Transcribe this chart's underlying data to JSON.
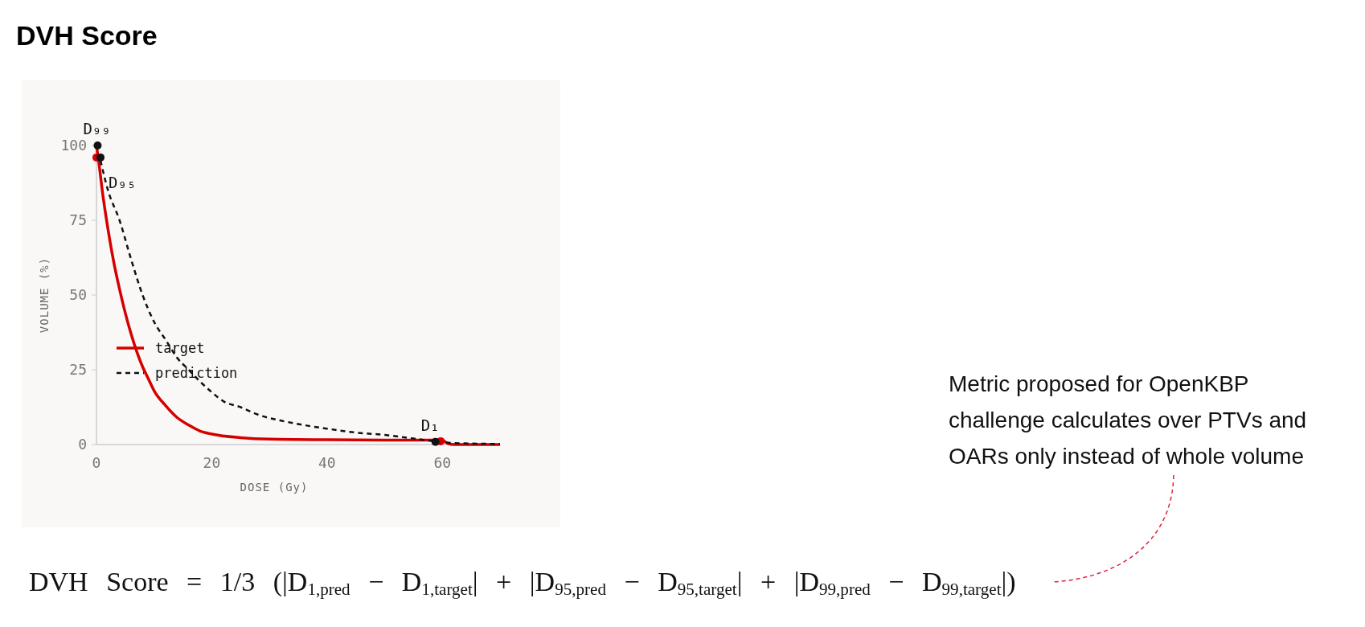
{
  "chart_data": {
    "type": "line",
    "title": "DVH Score",
    "xlabel": "DOSE (Gy)",
    "ylabel": "VOLUME (%)",
    "xlim": [
      0,
      70
    ],
    "ylim": [
      0,
      100
    ],
    "xticks": [
      0,
      20,
      40,
      60
    ],
    "yticks": [
      0,
      25,
      50,
      75,
      100
    ],
    "grid": false,
    "legend": "bottom left",
    "series": [
      {
        "name": "target",
        "color": "#d40000",
        "line_style": "solid",
        "x": [
          0,
          0.5,
          1,
          2,
          3,
          4,
          5,
          6,
          7,
          8,
          9,
          10,
          12,
          14,
          16,
          18,
          20,
          25,
          30,
          40,
          50,
          59,
          60,
          61,
          62,
          70
        ],
        "values": [
          100,
          93,
          85,
          72,
          61,
          52,
          44,
          37,
          31,
          26,
          22,
          18,
          13,
          9,
          6.5,
          4.5,
          3.5,
          2.3,
          1.8,
          1.6,
          1.5,
          1.5,
          1.4,
          0.3,
          0,
          0
        ]
      },
      {
        "name": "prediction",
        "color": "#111111",
        "line_style": "dashed",
        "x": [
          0.7,
          2,
          4,
          6,
          8,
          10,
          12,
          14,
          16,
          18,
          20,
          22,
          25,
          28,
          32,
          36,
          40,
          45,
          50,
          55,
          59,
          62,
          66,
          70
        ],
        "values": [
          95,
          85,
          75,
          62,
          50,
          41,
          35,
          29,
          25,
          21,
          17.5,
          14.5,
          12.5,
          10,
          8,
          6.5,
          5.3,
          4,
          3.2,
          2,
          1,
          0.5,
          0.3,
          0.2
        ]
      },
      {
        "type": "scatter",
        "marker": "circle",
        "color": "#d40000",
        "x": [
          0,
          59.7
        ],
        "values": [
          96,
          1.1
        ]
      },
      {
        "type": "scatter",
        "marker": "circle",
        "color": "#111111",
        "x": [
          0.2,
          0.7,
          58.8
        ],
        "values": [
          100,
          96,
          0.9
        ]
      }
    ],
    "annotations": [
      {
        "text": "D₉₉",
        "x": 0.2,
        "y": 100
      },
      {
        "text": "D₉₅",
        "x": 0.7,
        "y": 96
      },
      {
        "text": "D₁",
        "x": 58.8,
        "y": 0.9
      },
      "Metric proposed for OpenKBP challenge calculates over PTVs and OARs only instead of whole volume",
      "DVH Score = 1/3 (|D$_{1,pred}$ − D$_{1,target}$| + |D$_{95,pred}$ − D$_{95,target}$| + |D$_{99,pred}$ − D$_{99,target}$|)"
    ]
  }
}
